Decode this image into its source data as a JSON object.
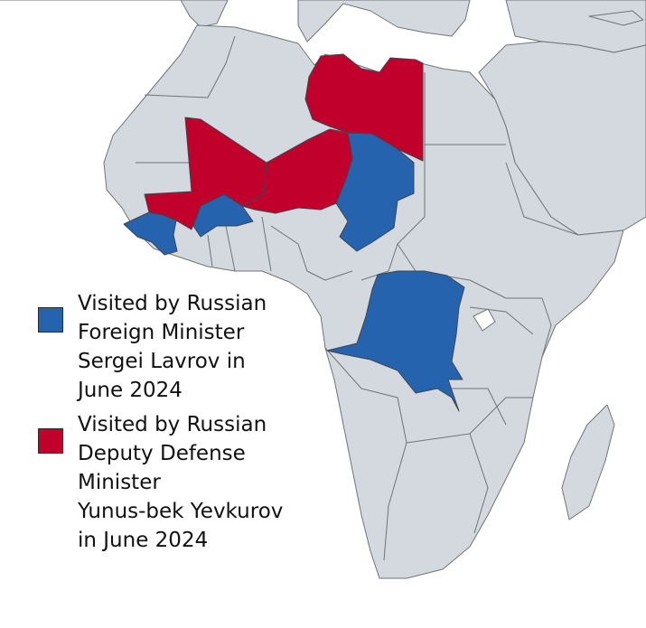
{
  "colors": {
    "lavrov": "#2563ae",
    "yevkurov": "#c1002b",
    "land": "#d3d9de",
    "border": "#6f7478"
  },
  "legend": [
    {
      "id": "lavrov",
      "lines": [
        "Visited by Russian",
        "Foreign Minister",
        "Sergei Lavrov in",
        "June 2024"
      ]
    },
    {
      "id": "yevkurov",
      "lines": [
        "Visited by Russian",
        "Deputy Defense",
        "Minister",
        "Yunus-bek Yevkurov",
        "in June 2024"
      ]
    }
  ]
}
